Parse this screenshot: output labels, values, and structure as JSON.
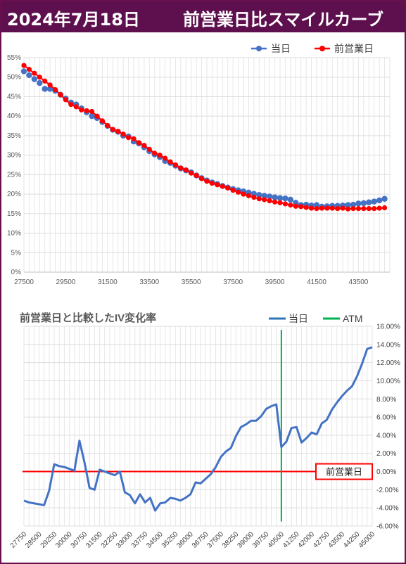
{
  "header": {
    "date": "2024年7月18日",
    "title": "前営業日比スマイルカーブ"
  },
  "colors": {
    "today": "#4472c4",
    "prev": "#ff0000",
    "atm": "#00b050",
    "header_bg": "#5d0f4e"
  },
  "chart_data": [
    {
      "type": "scatter",
      "series": [
        {
          "name": "当日",
          "x": [
            27500,
            27750,
            28000,
            28250,
            28500,
            28750,
            29000,
            29250,
            29500,
            29750,
            30000,
            30250,
            30500,
            30750,
            31000,
            31250,
            31500,
            31750,
            32000,
            32250,
            32500,
            32750,
            33000,
            33250,
            33500,
            33750,
            34000,
            34250,
            34500,
            34750,
            35000,
            35250,
            35500,
            35750,
            36000,
            36250,
            36500,
            36750,
            37000,
            37250,
            37500,
            37750,
            38000,
            38250,
            38500,
            38750,
            39000,
            39250,
            39500,
            39750,
            40000,
            40250,
            40500,
            40750,
            41000,
            41250,
            41500,
            41750,
            42000,
            42250,
            42500,
            42750,
            43000,
            43250,
            43500,
            43750,
            44000,
            44250,
            44500,
            44750
          ],
          "y": [
            51.5,
            50.5,
            49.5,
            48.5,
            47,
            47,
            46.5,
            45.5,
            44.5,
            43.5,
            43,
            42,
            41,
            40,
            39.5,
            38.5,
            37.5,
            36.5,
            36,
            35,
            34.8,
            33.5,
            33,
            32,
            31,
            30.2,
            29.5,
            28.5,
            28,
            27.3,
            26.6,
            26.1,
            25.6,
            24.8,
            24.1,
            23.5,
            23,
            22.6,
            22.1,
            21.7,
            21.3,
            21,
            20.7,
            20.4,
            20.1,
            19.8,
            19.6,
            19.4,
            19.2,
            19,
            18.9,
            18.6,
            17.8,
            17.2,
            17.3,
            17.1,
            17.2,
            16.8,
            16.9,
            17,
            17,
            17.1,
            17.2,
            17.3,
            17.6,
            17.7,
            17.9,
            18.1,
            18.4,
            18.8
          ]
        },
        {
          "name": "前営業日",
          "x": [
            27500,
            27750,
            28000,
            28250,
            28500,
            28750,
            29000,
            29250,
            29500,
            29750,
            30000,
            30250,
            30500,
            30750,
            31000,
            31250,
            31500,
            31750,
            32000,
            32250,
            32500,
            32750,
            33000,
            33250,
            33500,
            33750,
            34000,
            34250,
            34500,
            34750,
            35000,
            35250,
            35500,
            35750,
            36000,
            36250,
            36500,
            36750,
            37000,
            37250,
            37500,
            37750,
            38000,
            38250,
            38500,
            38750,
            39000,
            39250,
            39500,
            39750,
            40000,
            40250,
            40500,
            40750,
            41000,
            41250,
            41500,
            41750,
            42000,
            42250,
            42500,
            42750,
            43000,
            43250,
            43500,
            43750,
            44000,
            44250,
            44500,
            44750
          ],
          "y": [
            53,
            52,
            51,
            50,
            49,
            48,
            46.8,
            45.5,
            44.2,
            43,
            42.4,
            41.6,
            41.4,
            41.2,
            40,
            38.8,
            37.6,
            36.6,
            36.1,
            35.4,
            34.5,
            34.2,
            33.2,
            32.5,
            31.5,
            30.5,
            30,
            29.2,
            28.3,
            27.5,
            26.7,
            26.2,
            25.4,
            24.8,
            24,
            23.3,
            22.8,
            22.4,
            22,
            21.6,
            21,
            20.5,
            20,
            19.6,
            19.2,
            18.8,
            18.6,
            18.3,
            18,
            17.8,
            17.5,
            17.2,
            16.9,
            16.8,
            16.6,
            16.4,
            16.3,
            16.4,
            16.4,
            16.4,
            16.3,
            16.4,
            16.2,
            16.3,
            16.3,
            16.3,
            16.3,
            16.3,
            16.4,
            16.5
          ]
        }
      ],
      "xticks": [
        27500,
        29500,
        31500,
        33500,
        35500,
        37500,
        39500,
        41500,
        43500
      ],
      "yticks": [
        0,
        5,
        10,
        15,
        20,
        25,
        30,
        35,
        40,
        45,
        50,
        55
      ],
      "xlim": [
        27500,
        45000
      ],
      "ylim": [
        0,
        55
      ],
      "legend_position": "top-right",
      "grid": true
    },
    {
      "type": "line",
      "title": "前営業日と比較したIV変化率",
      "series": [
        {
          "name": "当日",
          "x": [
            27750,
            28000,
            28250,
            28500,
            28750,
            29000,
            29250,
            29500,
            29750,
            30000,
            30250,
            30500,
            30750,
            31000,
            31250,
            31500,
            31750,
            32000,
            32250,
            32500,
            32750,
            33000,
            33250,
            33500,
            33750,
            34000,
            34250,
            34500,
            34750,
            35000,
            35250,
            35500,
            35750,
            36000,
            36250,
            36500,
            36750,
            37000,
            37250,
            37500,
            37750,
            38000,
            38250,
            38500,
            38750,
            39000,
            39250,
            39500,
            39750,
            40000,
            40250,
            40500,
            40750,
            41000,
            41250,
            41500,
            41750,
            42000,
            42250,
            42500,
            42750,
            43000,
            43250,
            43500,
            43750,
            44000,
            44250,
            44500,
            44750,
            45000
          ],
          "y": [
            -3.2,
            -3.4,
            -3.5,
            -3.6,
            -3.7,
            -2.1,
            0.8,
            0.6,
            0.5,
            0.3,
            0.1,
            3.4,
            1.0,
            -1.8,
            -2.0,
            0.2,
            0,
            -0.2,
            -0.4,
            0.0,
            -2.3,
            -2.6,
            -3.5,
            -2.5,
            -3.4,
            -2.9,
            -4.3,
            -3.5,
            -3.4,
            -2.9,
            -3.0,
            -3.2,
            -2.9,
            -2.5,
            -1.2,
            -1.3,
            -0.8,
            -0.3,
            0.5,
            1.6,
            2.2,
            2.6,
            3.9,
            4.9,
            5.2,
            5.6,
            5.6,
            6.1,
            6.9,
            7.2,
            7.4,
            2.7,
            3.3,
            4.8,
            4.9,
            3.2,
            3.7,
            4.3,
            4.1,
            5.3,
            5.7,
            6.8,
            7.6,
            8.3,
            8.9,
            9.4,
            10.5,
            11.9,
            13.5,
            13.7
          ]
        },
        {
          "name": "ATM",
          "x": [
            40500,
            40500
          ],
          "y": [
            -5.5,
            15.6
          ]
        }
      ],
      "reference_line": {
        "label": "前営業日",
        "y": 0
      },
      "xticks": [
        27750,
        28500,
        29250,
        30000,
        30750,
        31500,
        32250,
        33000,
        33750,
        34500,
        35250,
        36000,
        36750,
        37500,
        38250,
        39000,
        39750,
        40500,
        41250,
        42000,
        42750,
        43500,
        44250,
        45000
      ],
      "yticks": [
        -6,
        -4,
        -2,
        0,
        2,
        4,
        6,
        8,
        10,
        12,
        14,
        16
      ],
      "xlim": [
        27750,
        45000
      ],
      "ylim": [
        -6,
        16
      ],
      "legend_position": "top",
      "grid": true
    }
  ]
}
